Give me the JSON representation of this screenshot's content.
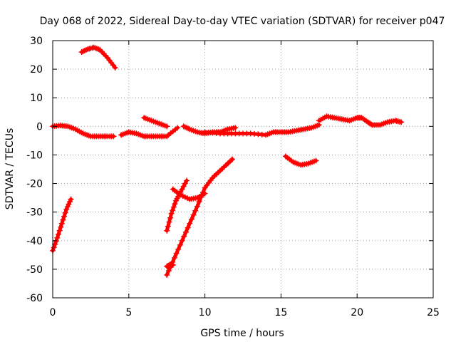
{
  "chart_data": {
    "type": "scatter",
    "title": "Day 068 of 2022, Sidereal Day-to-day VTEC variation (SDTVAR) for receiver p047",
    "xlabel": "GPS time / hours",
    "ylabel": "SDTVAR / TECUs",
    "xlim": [
      0,
      25
    ],
    "ylim": [
      -60,
      30
    ],
    "xticks": [
      0,
      5,
      10,
      15,
      20,
      25
    ],
    "yticks": [
      -60,
      -50,
      -40,
      -30,
      -20,
      -10,
      0,
      10,
      20,
      30
    ],
    "grid": true,
    "marker": "plus",
    "series_color": "#ff0000",
    "series": [
      {
        "name": "arc-low-start",
        "points": [
          [
            0,
            -43.5
          ],
          [
            0.3,
            -39
          ],
          [
            0.6,
            -34
          ],
          [
            0.9,
            -29
          ],
          [
            1.2,
            -25.5
          ]
        ]
      },
      {
        "name": "arc-high-start",
        "points": [
          [
            1.9,
            26
          ],
          [
            2.3,
            27
          ],
          [
            2.7,
            27.6
          ],
          [
            3.1,
            26.8
          ],
          [
            3.6,
            24
          ],
          [
            4.1,
            20.5
          ]
        ]
      },
      {
        "name": "arc-baseline-1",
        "points": [
          [
            0,
            0
          ],
          [
            0.5,
            0.3
          ],
          [
            1,
            0
          ],
          [
            1.5,
            -1
          ],
          [
            2,
            -2.5
          ],
          [
            2.5,
            -3.5
          ],
          [
            3,
            -3.5
          ],
          [
            3.5,
            -3.5
          ],
          [
            4,
            -3.5
          ]
        ]
      },
      {
        "name": "arc-baseline-2",
        "points": [
          [
            4.5,
            -3
          ],
          [
            5,
            -2
          ],
          [
            5.5,
            -2.5
          ],
          [
            6,
            -3.5
          ],
          [
            6.5,
            -3.5
          ],
          [
            7,
            -3.5
          ],
          [
            7.5,
            -3.5
          ]
        ]
      },
      {
        "name": "arc-short-1",
        "points": [
          [
            6,
            3
          ],
          [
            6.5,
            2
          ],
          [
            7,
            1
          ],
          [
            7.5,
            0
          ]
        ]
      },
      {
        "name": "arc-short-2",
        "points": [
          [
            7.6,
            -3
          ],
          [
            8.2,
            -0.5
          ]
        ]
      },
      {
        "name": "arc-baseline-3",
        "points": [
          [
            8.6,
            0
          ],
          [
            9,
            -1
          ],
          [
            9.5,
            -2
          ],
          [
            10,
            -2.5
          ],
          [
            10.5,
            -2
          ],
          [
            11,
            -2
          ],
          [
            11.5,
            -1
          ],
          [
            12,
            -0.5
          ]
        ]
      },
      {
        "name": "arc-baseline-4",
        "points": [
          [
            10,
            -2
          ],
          [
            11,
            -2.5
          ],
          [
            12,
            -2.5
          ],
          [
            13,
            -2.5
          ],
          [
            14,
            -3
          ],
          [
            14.5,
            -2
          ],
          [
            15,
            -2
          ],
          [
            15.5,
            -2
          ],
          [
            16,
            -1.5
          ],
          [
            16.5,
            -1
          ],
          [
            17,
            -0.5
          ],
          [
            17.5,
            0.5
          ]
        ]
      },
      {
        "name": "arc-high-mid",
        "points": [
          [
            17.5,
            2
          ],
          [
            18,
            3.5
          ],
          [
            18.5,
            3
          ],
          [
            19,
            2.5
          ],
          [
            19.5,
            2
          ],
          [
            20,
            3
          ],
          [
            20.3,
            3
          ],
          [
            20.7,
            1.5
          ],
          [
            21,
            0.5
          ],
          [
            21.5,
            0.5
          ],
          [
            22,
            1.5
          ],
          [
            22.5,
            2
          ],
          [
            22.9,
            1.5
          ]
        ]
      },
      {
        "name": "arc-mid-dip",
        "points": [
          [
            15.3,
            -10.5
          ],
          [
            15.8,
            -12.5
          ],
          [
            16.3,
            -13.5
          ],
          [
            16.8,
            -13
          ],
          [
            17.3,
            -12
          ]
        ]
      },
      {
        "name": "arc-low-mid-1",
        "points": [
          [
            7.5,
            -52
          ],
          [
            8,
            -46
          ],
          [
            8.5,
            -40
          ],
          [
            9,
            -34
          ],
          [
            9.5,
            -28
          ],
          [
            10,
            -21.5
          ],
          [
            10.5,
            -18
          ],
          [
            11,
            -15.5
          ],
          [
            11.5,
            -13
          ],
          [
            11.8,
            -11.5
          ]
        ]
      },
      {
        "name": "arc-low-mid-2",
        "points": [
          [
            7.5,
            -36.5
          ],
          [
            7.8,
            -30.5
          ],
          [
            8.1,
            -26
          ],
          [
            8.4,
            -23
          ],
          [
            8.8,
            -19
          ]
        ]
      },
      {
        "name": "arc-low-mid-3",
        "points": [
          [
            7.9,
            -22
          ],
          [
            8.4,
            -24
          ],
          [
            9,
            -25.5
          ],
          [
            9.5,
            -25
          ],
          [
            10,
            -23.5
          ]
        ]
      },
      {
        "name": "arc-low-mid-4",
        "points": [
          [
            7.5,
            -49
          ],
          [
            7.7,
            -48.5
          ],
          [
            7.9,
            -48.5
          ]
        ]
      }
    ]
  }
}
